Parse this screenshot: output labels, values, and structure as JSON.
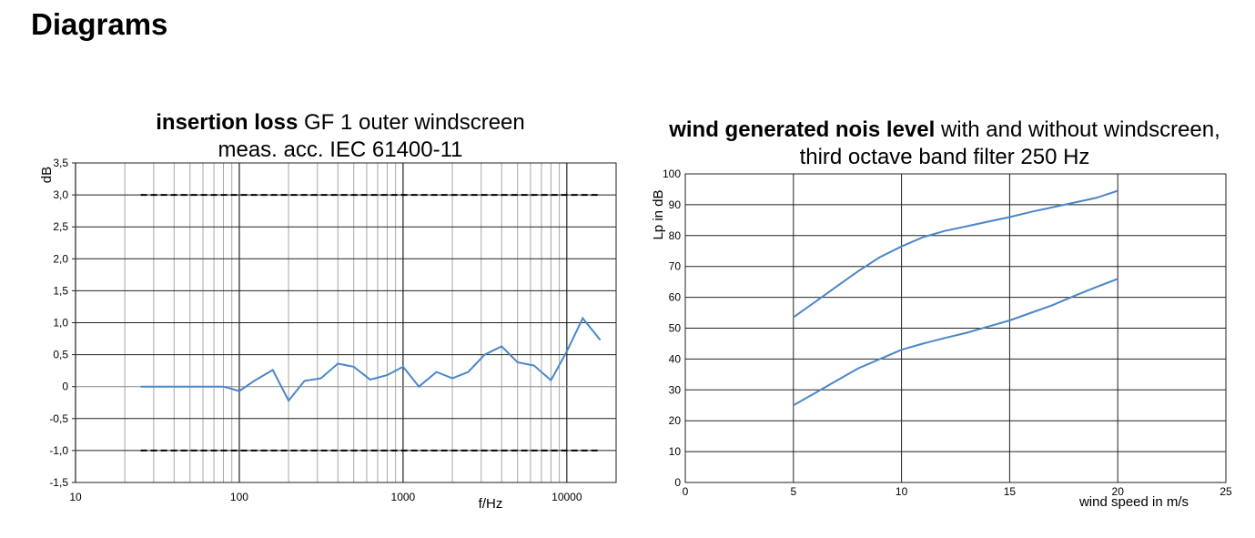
{
  "page": {
    "title": "Diagrams"
  },
  "chart_data": [
    {
      "type": "line",
      "title_bold": "insertion loss",
      "title_rest": " GF 1 outer windscreen",
      "subtitle": "meas. acc. IEC 61400-11",
      "xlabel": "f/Hz",
      "ylabel": "dB",
      "xscale": "log",
      "xlim": [
        10,
        20000
      ],
      "ylim": [
        -1.5,
        3.5
      ],
      "grid": true,
      "x_tick_labels": [
        "10",
        "100",
        "1000",
        "10000"
      ],
      "x_tick_values": [
        10,
        100,
        1000,
        10000
      ],
      "y_tick_labels": [
        "3,5",
        "3,0",
        "2,5",
        "2,0",
        "1,5",
        "1,0",
        "0,5",
        "0",
        "-0,5",
        "-1,0",
        "-1,5"
      ],
      "y_tick_values": [
        3.5,
        3.0,
        2.5,
        2.0,
        1.5,
        1.0,
        0.5,
        0,
        -0.5,
        -1.0,
        -1.5
      ],
      "series": [
        {
          "color": "#4a86c8",
          "x": [
            25,
            31.5,
            40,
            50,
            63,
            80,
            100,
            125,
            160,
            200,
            250,
            315,
            400,
            500,
            630,
            800,
            1000,
            1250,
            1600,
            2000,
            2500,
            3150,
            4000,
            5000,
            6300,
            8000,
            10000,
            12500,
            16000
          ],
          "y": [
            0,
            0,
            0,
            0,
            0,
            0,
            -0.07,
            0.1,
            0.26,
            -0.22,
            0.09,
            0.13,
            0.36,
            0.31,
            0.11,
            0.18,
            0.31,
            0.0,
            0.23,
            0.13,
            0.23,
            0.5,
            0.63,
            0.38,
            0.33,
            0.1,
            0.55,
            1.07,
            0.73
          ]
        }
      ],
      "reference_lines": [
        {
          "style": "dashed",
          "color": "#000000",
          "y": 3.0,
          "x": [
            25,
            16000
          ]
        },
        {
          "style": "dashed",
          "color": "#000000",
          "y": -1.0,
          "x": [
            25,
            16000
          ]
        }
      ]
    },
    {
      "type": "line",
      "title_bold": "wind generated nois level",
      "title_rest": " with and without windscreen,",
      "subtitle": "third octave band filter 250 Hz",
      "xlabel": "wind speed in m/s",
      "ylabel": "Lp in dB",
      "xlim": [
        0,
        25
      ],
      "ylim": [
        0,
        100
      ],
      "grid": true,
      "x_tick_labels": [
        "0",
        "5",
        "10",
        "15",
        "20",
        "25"
      ],
      "x_tick_values": [
        0,
        5,
        10,
        15,
        20,
        25
      ],
      "y_tick_labels": [
        "0",
        "10",
        "20",
        "30",
        "40",
        "50",
        "60",
        "70",
        "80",
        "90",
        "100"
      ],
      "y_tick_values": [
        0,
        10,
        20,
        30,
        40,
        50,
        60,
        70,
        80,
        90,
        100
      ],
      "series": [
        {
          "color": "#4a86c8",
          "x": [
            5,
            6,
            7,
            8,
            9,
            10,
            11,
            12,
            13,
            14,
            15,
            16,
            17,
            18,
            19,
            20
          ],
          "y": [
            53.5,
            58.5,
            63.5,
            68.5,
            73,
            76.5,
            79.5,
            81.5,
            83,
            84.5,
            86,
            87.7,
            89.2,
            90.7,
            92.2,
            94.5
          ]
        },
        {
          "color": "#4a86c8",
          "x": [
            5,
            6,
            7,
            8,
            9,
            10,
            11,
            12,
            13,
            14,
            15,
            16,
            17,
            18,
            19,
            20
          ],
          "y": [
            25,
            29,
            33,
            37,
            40,
            43,
            45,
            46.8,
            48.5,
            50.5,
            52.5,
            55,
            57.5,
            60.5,
            63.3,
            66
          ]
        }
      ]
    }
  ]
}
